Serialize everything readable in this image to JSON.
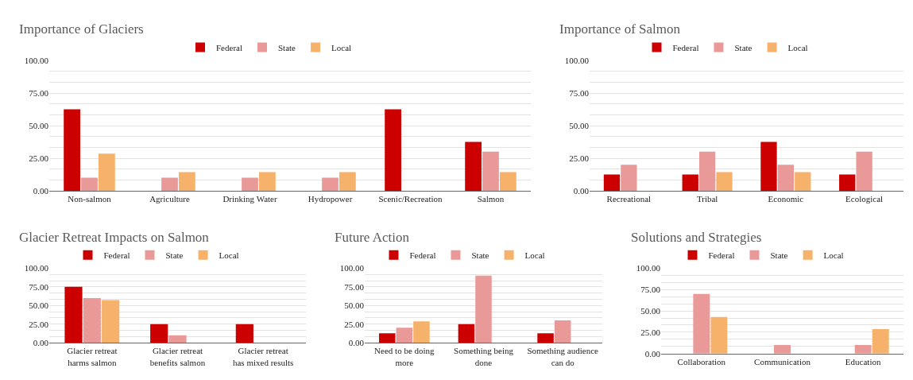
{
  "chart_data": [
    {
      "type": "bar",
      "title": "Importance of Glaciers",
      "categories": [
        "Non-salmon",
        "Agriculture",
        "Drinking Water",
        "Hydropower",
        "Scenic/Recreation",
        "Salmon"
      ],
      "series": [
        {
          "name": "Federal",
          "color": "#cc0000",
          "values": [
            62.5,
            0,
            0,
            0,
            62.5,
            37.5
          ]
        },
        {
          "name": "State",
          "color": "#ea9999",
          "values": [
            10,
            10,
            10,
            10,
            0,
            30
          ]
        },
        {
          "name": "Local",
          "color": "#f6b26b",
          "values": [
            28.6,
            14.3,
            14.3,
            14.3,
            0,
            14.3
          ]
        }
      ],
      "ylim": [
        0,
        100
      ],
      "yticks": [
        {
          "value": 0,
          "label": "0.00"
        },
        {
          "value": 8.33,
          "label": null
        },
        {
          "value": 16.67,
          "label": null
        },
        {
          "value": 25,
          "label": "25.00"
        },
        {
          "value": 33.33,
          "label": null
        },
        {
          "value": 41.67,
          "label": null
        },
        {
          "value": 50,
          "label": "50.00"
        },
        {
          "value": 58.33,
          "label": null
        },
        {
          "value": 66.67,
          "label": null
        },
        {
          "value": 75,
          "label": "75.00"
        },
        {
          "value": 83.33,
          "label": null
        },
        {
          "value": 91.67,
          "label": null
        },
        {
          "value": 100,
          "label": "100.00"
        }
      ],
      "grid": "y",
      "legend": "top"
    },
    {
      "type": "bar",
      "title": "Importance of Salmon",
      "categories": [
        "Recreational",
        "Tribal",
        "Economic",
        "Ecological"
      ],
      "series": [
        {
          "name": "Federal",
          "color": "#cc0000",
          "values": [
            12.5,
            12.5,
            37.5,
            12.5
          ]
        },
        {
          "name": "State",
          "color": "#ea9999",
          "values": [
            20,
            30,
            20,
            30
          ]
        },
        {
          "name": "Local",
          "color": "#f6b26b",
          "values": [
            0,
            14.3,
            14.3,
            0
          ]
        }
      ],
      "ylim": [
        0,
        100
      ],
      "yticks": [
        {
          "value": 0,
          "label": "0.00"
        },
        {
          "value": 8.33,
          "label": null
        },
        {
          "value": 16.67,
          "label": null
        },
        {
          "value": 25,
          "label": "25.00"
        },
        {
          "value": 33.33,
          "label": null
        },
        {
          "value": 41.67,
          "label": null
        },
        {
          "value": 50,
          "label": "50.00"
        },
        {
          "value": 58.33,
          "label": null
        },
        {
          "value": 66.67,
          "label": null
        },
        {
          "value": 75,
          "label": "75.00"
        },
        {
          "value": 83.33,
          "label": null
        },
        {
          "value": 91.67,
          "label": null
        },
        {
          "value": 100,
          "label": "100.00"
        }
      ],
      "grid": "y",
      "legend": "top"
    },
    {
      "type": "bar",
      "title": "Glacier Retreat Impacts on Salmon",
      "categories": [
        "Glacier retreat harms salmon",
        "Glacier retreat benefits salmon",
        "Glacier retreat has mixed results"
      ],
      "series": [
        {
          "name": "Federal",
          "color": "#cc0000",
          "values": [
            75,
            25,
            25
          ]
        },
        {
          "name": "State",
          "color": "#ea9999",
          "values": [
            60,
            10,
            0
          ]
        },
        {
          "name": "Local",
          "color": "#f6b26b",
          "values": [
            57.1,
            0,
            0
          ]
        }
      ],
      "ylim": [
        0,
        100
      ],
      "yticks": [
        {
          "value": 0,
          "label": "0.00"
        },
        {
          "value": 8.33,
          "label": null
        },
        {
          "value": 16.67,
          "label": null
        },
        {
          "value": 25,
          "label": "25.00"
        },
        {
          "value": 33.33,
          "label": null
        },
        {
          "value": 41.67,
          "label": null
        },
        {
          "value": 50,
          "label": "50.00"
        },
        {
          "value": 58.33,
          "label": null
        },
        {
          "value": 66.67,
          "label": null
        },
        {
          "value": 75,
          "label": "75.00"
        },
        {
          "value": 83.33,
          "label": null
        },
        {
          "value": 91.67,
          "label": null
        },
        {
          "value": 100,
          "label": "100.00"
        }
      ],
      "grid": "y",
      "legend": "top"
    },
    {
      "type": "bar",
      "title": "Future Action",
      "categories": [
        "Need to be doing more",
        "Something being done",
        "Something audience can do"
      ],
      "series": [
        {
          "name": "Federal",
          "color": "#cc0000",
          "values": [
            12.5,
            25,
            12.5
          ]
        },
        {
          "name": "State",
          "color": "#ea9999",
          "values": [
            20,
            90,
            30
          ]
        },
        {
          "name": "Local",
          "color": "#f6b26b",
          "values": [
            28.6,
            0,
            0
          ]
        }
      ],
      "ylim": [
        0,
        100
      ],
      "yticks": [
        {
          "value": 0,
          "label": "0.00"
        },
        {
          "value": 8.33,
          "label": null
        },
        {
          "value": 16.67,
          "label": null
        },
        {
          "value": 25,
          "label": "25.00"
        },
        {
          "value": 33.33,
          "label": null
        },
        {
          "value": 41.67,
          "label": null
        },
        {
          "value": 50,
          "label": "50.00"
        },
        {
          "value": 58.33,
          "label": null
        },
        {
          "value": 66.67,
          "label": null
        },
        {
          "value": 75,
          "label": "75.00"
        },
        {
          "value": 83.33,
          "label": null
        },
        {
          "value": 91.67,
          "label": null
        },
        {
          "value": 100,
          "label": "100.00"
        }
      ],
      "grid": "y",
      "legend": "top"
    },
    {
      "type": "bar",
      "title": "Solutions and Strategies",
      "categories": [
        "Collaboration",
        "Communication",
        "Education"
      ],
      "series": [
        {
          "name": "Federal",
          "color": "#cc0000",
          "values": [
            0,
            0,
            0
          ]
        },
        {
          "name": "State",
          "color": "#ea9999",
          "values": [
            70,
            10,
            10
          ]
        },
        {
          "name": "Local",
          "color": "#f6b26b",
          "values": [
            42.9,
            0,
            28.6
          ]
        }
      ],
      "ylim": [
        0,
        100
      ],
      "yticks": [
        {
          "value": 0,
          "label": "0.00"
        },
        {
          "value": 8.33,
          "label": null
        },
        {
          "value": 16.67,
          "label": null
        },
        {
          "value": 25,
          "label": "25.00"
        },
        {
          "value": 33.33,
          "label": null
        },
        {
          "value": 41.67,
          "label": null
        },
        {
          "value": 50,
          "label": "50.00"
        },
        {
          "value": 58.33,
          "label": null
        },
        {
          "value": 66.67,
          "label": null
        },
        {
          "value": 75,
          "label": "75.00"
        },
        {
          "value": 83.33,
          "label": null
        },
        {
          "value": 91.67,
          "label": null
        },
        {
          "value": 100,
          "label": "100.00"
        }
      ],
      "grid": "y",
      "legend": "top"
    }
  ]
}
